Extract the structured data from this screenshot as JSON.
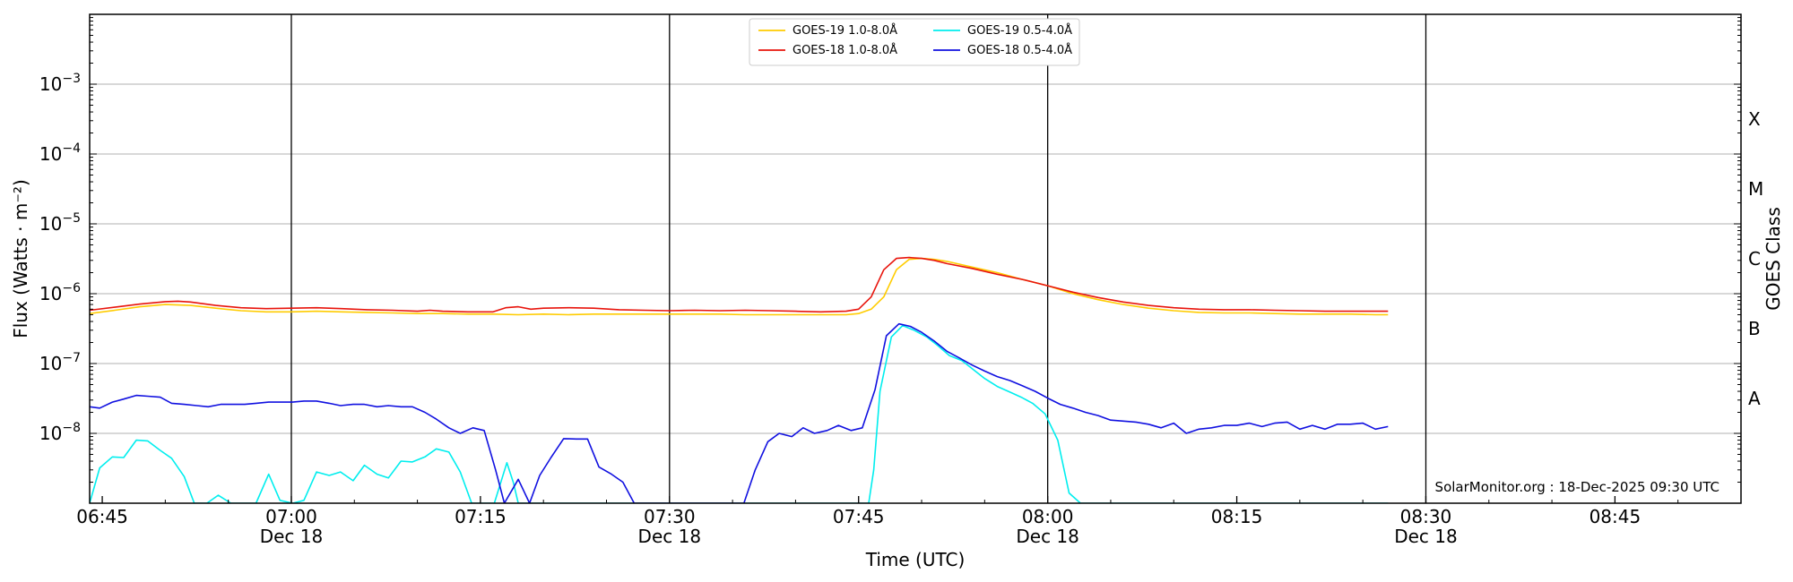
{
  "chart_data": {
    "type": "line",
    "title": "",
    "xlabel": "Time (UTC)",
    "ylabel": "Flux (Watts · m⁻²)",
    "y2label": "GOES Class",
    "yscale": "log",
    "ylim": [
      1e-09,
      0.01
    ],
    "xlim_minutes": [
      404,
      535
    ],
    "grid": "horizontal",
    "legend_location": "top-center",
    "credit": "SolarMonitor.org : 18-Dec-2025 09:30 UTC",
    "x_ticks": [
      {
        "minute": 405,
        "label": "06:45",
        "sub": ""
      },
      {
        "minute": 420,
        "label": "07:00",
        "sub": "Dec 18"
      },
      {
        "minute": 435,
        "label": "07:15",
        "sub": ""
      },
      {
        "minute": 450,
        "label": "07:30",
        "sub": "Dec 18"
      },
      {
        "minute": 465,
        "label": "07:45",
        "sub": ""
      },
      {
        "minute": 480,
        "label": "08:00",
        "sub": "Dec 18"
      },
      {
        "minute": 495,
        "label": "08:15",
        "sub": ""
      },
      {
        "minute": 510,
        "label": "08:30",
        "sub": "Dec 18"
      },
      {
        "minute": 525,
        "label": "08:45",
        "sub": ""
      }
    ],
    "vlines_minutes": [
      420,
      450,
      480,
      510
    ],
    "y_ticks": [
      {
        "exp": -8,
        "label": "10",
        "sup": "−8"
      },
      {
        "exp": -7,
        "label": "10",
        "sup": "−7"
      },
      {
        "exp": -6,
        "label": "10",
        "sup": "−6"
      },
      {
        "exp": -5,
        "label": "10",
        "sup": "−5"
      },
      {
        "exp": -4,
        "label": "10",
        "sup": "−4"
      },
      {
        "exp": -3,
        "label": "10",
        "sup": "−3"
      }
    ],
    "goes_classes": [
      {
        "label": "A",
        "exp": -8
      },
      {
        "label": "B",
        "exp": -7
      },
      {
        "label": "C",
        "exp": -6
      },
      {
        "label": "M",
        "exp": -5
      },
      {
        "label": "X",
        "exp": -4
      }
    ],
    "series": [
      {
        "name": "GOES-19 1.0-8.0Å",
        "color": "#ffcc00",
        "points": [
          [
            404,
            5.2e-07
          ],
          [
            406,
            5.8e-07
          ],
          [
            408,
            6.5e-07
          ],
          [
            410,
            7e-07
          ],
          [
            412,
            6.8e-07
          ],
          [
            414,
            6.2e-07
          ],
          [
            416,
            5.7e-07
          ],
          [
            418,
            5.5e-07
          ],
          [
            420,
            5.5e-07
          ],
          [
            422,
            5.6e-07
          ],
          [
            424,
            5.5e-07
          ],
          [
            426,
            5.4e-07
          ],
          [
            428,
            5.3e-07
          ],
          [
            430,
            5.2e-07
          ],
          [
            432,
            5.2e-07
          ],
          [
            434,
            5.1e-07
          ],
          [
            436,
            5.1e-07
          ],
          [
            438,
            5e-07
          ],
          [
            440,
            5.1e-07
          ],
          [
            442,
            5e-07
          ],
          [
            444,
            5.1e-07
          ],
          [
            446,
            5.1e-07
          ],
          [
            448,
            5.1e-07
          ],
          [
            450,
            5.1e-07
          ],
          [
            452,
            5.1e-07
          ],
          [
            454,
            5.1e-07
          ],
          [
            456,
            5e-07
          ],
          [
            458,
            5e-07
          ],
          [
            460,
            5e-07
          ],
          [
            462,
            5e-07
          ],
          [
            464,
            5e-07
          ],
          [
            465,
            5.2e-07
          ],
          [
            466,
            6e-07
          ],
          [
            467,
            9e-07
          ],
          [
            468,
            2.2e-06
          ],
          [
            469,
            3.1e-06
          ],
          [
            470,
            3.2e-06
          ],
          [
            471,
            3.1e-06
          ],
          [
            472,
            2.9e-06
          ],
          [
            474,
            2.4e-06
          ],
          [
            476,
            2e-06
          ],
          [
            478,
            1.6e-06
          ],
          [
            480,
            1.3e-06
          ],
          [
            482,
            1e-06
          ],
          [
            484,
            8.2e-07
          ],
          [
            486,
            7e-07
          ],
          [
            488,
            6.2e-07
          ],
          [
            490,
            5.7e-07
          ],
          [
            492,
            5.4e-07
          ],
          [
            494,
            5.3e-07
          ],
          [
            496,
            5.3e-07
          ],
          [
            498,
            5.2e-07
          ],
          [
            500,
            5.1e-07
          ],
          [
            502,
            5.1e-07
          ],
          [
            504,
            5.1e-07
          ],
          [
            506,
            5e-07
          ],
          [
            507,
            5e-07
          ]
        ]
      },
      {
        "name": "GOES-18 1.0-8.0Å",
        "color": "#e8140c",
        "points": [
          [
            404,
            5.8e-07
          ],
          [
            406,
            6.4e-07
          ],
          [
            408,
            7.1e-07
          ],
          [
            410,
            7.7e-07
          ],
          [
            411,
            7.8e-07
          ],
          [
            412,
            7.6e-07
          ],
          [
            414,
            6.8e-07
          ],
          [
            416,
            6.3e-07
          ],
          [
            418,
            6.1e-07
          ],
          [
            420,
            6.2e-07
          ],
          [
            422,
            6.3e-07
          ],
          [
            424,
            6.1e-07
          ],
          [
            426,
            5.9e-07
          ],
          [
            428,
            5.8e-07
          ],
          [
            430,
            5.6e-07
          ],
          [
            431,
            5.8e-07
          ],
          [
            432,
            5.6e-07
          ],
          [
            434,
            5.5e-07
          ],
          [
            436,
            5.5e-07
          ],
          [
            437,
            6.3e-07
          ],
          [
            438,
            6.5e-07
          ],
          [
            439,
            6e-07
          ],
          [
            440,
            6.2e-07
          ],
          [
            442,
            6.3e-07
          ],
          [
            444,
            6.2e-07
          ],
          [
            446,
            5.9e-07
          ],
          [
            448,
            5.8e-07
          ],
          [
            450,
            5.7e-07
          ],
          [
            452,
            5.8e-07
          ],
          [
            454,
            5.7e-07
          ],
          [
            456,
            5.8e-07
          ],
          [
            458,
            5.7e-07
          ],
          [
            460,
            5.6e-07
          ],
          [
            462,
            5.5e-07
          ],
          [
            464,
            5.6e-07
          ],
          [
            465,
            6e-07
          ],
          [
            466,
            9e-07
          ],
          [
            467,
            2.2e-06
          ],
          [
            468,
            3.2e-06
          ],
          [
            469,
            3.3e-06
          ],
          [
            470,
            3.2e-06
          ],
          [
            471,
            3e-06
          ],
          [
            472,
            2.7e-06
          ],
          [
            474,
            2.3e-06
          ],
          [
            476,
            1.9e-06
          ],
          [
            478,
            1.6e-06
          ],
          [
            480,
            1.3e-06
          ],
          [
            482,
            1.05e-06
          ],
          [
            484,
            8.8e-07
          ],
          [
            486,
            7.6e-07
          ],
          [
            488,
            6.8e-07
          ],
          [
            490,
            6.3e-07
          ],
          [
            492,
            6e-07
          ],
          [
            494,
            5.9e-07
          ],
          [
            496,
            5.9e-07
          ],
          [
            498,
            5.8e-07
          ],
          [
            500,
            5.7e-07
          ],
          [
            502,
            5.6e-07
          ],
          [
            504,
            5.6e-07
          ],
          [
            506,
            5.6e-07
          ],
          [
            507,
            5.6e-07
          ]
        ]
      },
      {
        "name": "GOES-19 0.5-4.0Å",
        "color": "#00eeee",
        "points": [
          [
            404,
            1e-09
          ],
          [
            404.8,
            3.2e-09
          ],
          [
            405.8,
            4.6e-09
          ],
          [
            406.7,
            4.5e-09
          ],
          [
            407.7,
            8e-09
          ],
          [
            408.6,
            7.8e-09
          ],
          [
            409.6,
            5.7e-09
          ],
          [
            410.5,
            4.4e-09
          ],
          [
            411.5,
            2.4e-09
          ],
          [
            412.3,
            1e-09
          ],
          [
            413.3,
            1e-09
          ],
          [
            414.2,
            1.3e-09
          ],
          [
            415.2,
            1e-09
          ],
          [
            416.2,
            1e-09
          ],
          [
            417.2,
            1e-09
          ],
          [
            418.2,
            2.6e-09
          ],
          [
            419.1,
            1.1e-09
          ],
          [
            420.1,
            1e-09
          ],
          [
            421.0,
            1.1e-09
          ],
          [
            422.0,
            2.8e-09
          ],
          [
            423.0,
            2.5e-09
          ],
          [
            423.9,
            2.8e-09
          ],
          [
            424.9,
            2.1e-09
          ],
          [
            425.8,
            3.5e-09
          ],
          [
            426.8,
            2.6e-09
          ],
          [
            427.7,
            2.3e-09
          ],
          [
            428.7,
            4e-09
          ],
          [
            429.6,
            3.9e-09
          ],
          [
            430.6,
            4.6e-09
          ],
          [
            431.5,
            6e-09
          ],
          [
            432.5,
            5.4e-09
          ],
          [
            433.4,
            2.8e-09
          ],
          [
            434.3,
            1e-09
          ],
          [
            435.2,
            1e-09
          ],
          [
            436.1,
            1e-09
          ],
          [
            437.1,
            3.8e-09
          ],
          [
            437.6,
            2e-09
          ],
          [
            438.0,
            1e-09
          ],
          [
            465.8,
            1e-09
          ],
          [
            466.2,
            3e-09
          ],
          [
            466.7,
            4e-08
          ],
          [
            467.6,
            2.4e-07
          ],
          [
            468.5,
            3.5e-07
          ],
          [
            469.4,
            3e-07
          ],
          [
            470.4,
            2.4e-07
          ],
          [
            471.3,
            1.8e-07
          ],
          [
            472.2,
            1.3e-07
          ],
          [
            473.2,
            1.1e-07
          ],
          [
            474.1,
            8.2e-08
          ],
          [
            475.0,
            6.1e-08
          ],
          [
            476.0,
            4.7e-08
          ],
          [
            477.0,
            3.9e-08
          ],
          [
            477.9,
            3.3e-08
          ],
          [
            478.8,
            2.7e-08
          ],
          [
            479.8,
            1.9e-08
          ],
          [
            480.8,
            8e-09
          ],
          [
            481.7,
            1.4e-09
          ],
          [
            482.6,
            1e-09
          ],
          [
            507,
            1e-09
          ]
        ]
      },
      {
        "name": "GOES-18 0.5-4.0Å",
        "color": "#1010e0",
        "points": [
          [
            404,
            2.4e-08
          ],
          [
            404.8,
            2.3e-08
          ],
          [
            405.8,
            2.8e-08
          ],
          [
            406.7,
            3.1e-08
          ],
          [
            407.7,
            3.5e-08
          ],
          [
            408.6,
            3.4e-08
          ],
          [
            409.6,
            3.3e-08
          ],
          [
            410.5,
            2.7e-08
          ],
          [
            411.5,
            2.6e-08
          ],
          [
            412.5,
            2.5e-08
          ],
          [
            413.4,
            2.4e-08
          ],
          [
            414.4,
            2.6e-08
          ],
          [
            415.3,
            2.6e-08
          ],
          [
            416.3,
            2.6e-08
          ],
          [
            417.2,
            2.7e-08
          ],
          [
            418.2,
            2.8e-08
          ],
          [
            419.1,
            2.8e-08
          ],
          [
            420.1,
            2.8e-08
          ],
          [
            421.0,
            2.9e-08
          ],
          [
            422.0,
            2.9e-08
          ],
          [
            423.0,
            2.7e-08
          ],
          [
            423.9,
            2.5e-08
          ],
          [
            424.9,
            2.6e-08
          ],
          [
            425.8,
            2.6e-08
          ],
          [
            426.8,
            2.4e-08
          ],
          [
            427.7,
            2.5e-08
          ],
          [
            428.7,
            2.4e-08
          ],
          [
            429.6,
            2.4e-08
          ],
          [
            430.6,
            2e-08
          ],
          [
            431.5,
            1.6e-08
          ],
          [
            432.5,
            1.2e-08
          ],
          [
            433.4,
            1e-08
          ],
          [
            434.4,
            1.2e-08
          ],
          [
            435.3,
            1.1e-08
          ],
          [
            436.2,
            3e-09
          ],
          [
            436.9,
            1e-09
          ],
          [
            438.0,
            2.2e-09
          ],
          [
            438.9,
            1e-09
          ],
          [
            439.7,
            2.5e-09
          ],
          [
            440.6,
            4.5e-09
          ],
          [
            441.6,
            8.4e-09
          ],
          [
            442.6,
            8.3e-09
          ],
          [
            443.5,
            8.3e-09
          ],
          [
            444.4,
            3.3e-09
          ],
          [
            445.4,
            2.6e-09
          ],
          [
            446.3,
            2e-09
          ],
          [
            447.2,
            1e-09
          ],
          [
            453.0,
            1e-09
          ],
          [
            455.9,
            1e-09
          ],
          [
            456.8,
            3e-09
          ],
          [
            457.8,
            7.6e-09
          ],
          [
            458.7,
            1e-08
          ],
          [
            459.7,
            9e-09
          ],
          [
            460.6,
            1.2e-08
          ],
          [
            461.5,
            1e-08
          ],
          [
            462.5,
            1.1e-08
          ],
          [
            463.4,
            1.3e-08
          ],
          [
            464.4,
            1.1e-08
          ],
          [
            465.3,
            1.2e-08
          ],
          [
            466.3,
            4.2e-08
          ],
          [
            467.2,
            2.5e-07
          ],
          [
            468.2,
            3.7e-07
          ],
          [
            469.1,
            3.4e-07
          ],
          [
            470.0,
            2.8e-07
          ],
          [
            471.0,
            2.1e-07
          ],
          [
            472.0,
            1.5e-07
          ],
          [
            473.0,
            1.2e-07
          ],
          [
            474.0,
            9.5e-08
          ],
          [
            475.0,
            7.8e-08
          ],
          [
            476.0,
            6.5e-08
          ],
          [
            477.0,
            5.7e-08
          ],
          [
            478.0,
            4.8e-08
          ],
          [
            479.0,
            4e-08
          ],
          [
            480.0,
            3.2e-08
          ],
          [
            481.0,
            2.6e-08
          ],
          [
            482.0,
            2.3e-08
          ],
          [
            483.0,
            2e-08
          ],
          [
            484.0,
            1.8e-08
          ],
          [
            485.0,
            1.55e-08
          ],
          [
            486.0,
            1.5e-08
          ],
          [
            487.0,
            1.45e-08
          ],
          [
            488.0,
            1.35e-08
          ],
          [
            489.0,
            1.2e-08
          ],
          [
            490.0,
            1.4e-08
          ],
          [
            491.0,
            1e-08
          ],
          [
            492.0,
            1.15e-08
          ],
          [
            493.0,
            1.2e-08
          ],
          [
            494.0,
            1.3e-08
          ],
          [
            495.0,
            1.3e-08
          ],
          [
            496.0,
            1.4e-08
          ],
          [
            497.0,
            1.25e-08
          ],
          [
            498.0,
            1.4e-08
          ],
          [
            499.0,
            1.45e-08
          ],
          [
            500.0,
            1.15e-08
          ],
          [
            501.0,
            1.3e-08
          ],
          [
            502.0,
            1.15e-08
          ],
          [
            503.0,
            1.35e-08
          ],
          [
            504.0,
            1.35e-08
          ],
          [
            505.0,
            1.4e-08
          ],
          [
            506.0,
            1.15e-08
          ],
          [
            507,
            1.25e-08
          ]
        ]
      }
    ]
  }
}
